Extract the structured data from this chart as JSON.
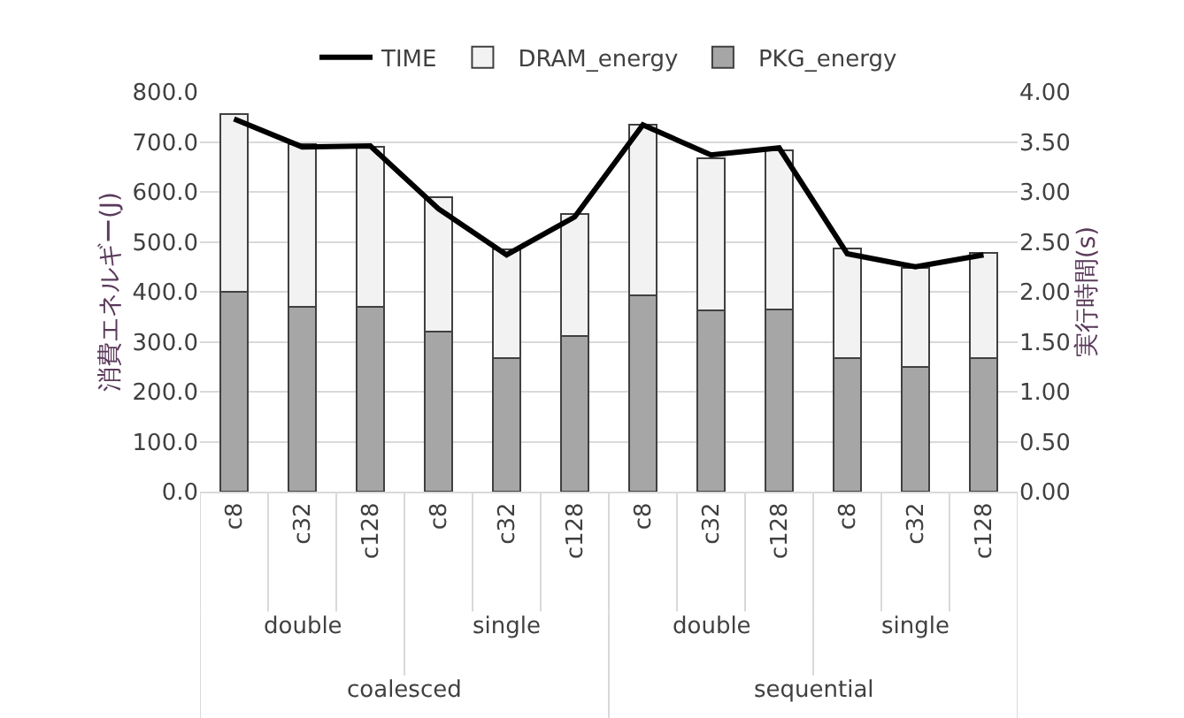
{
  "chart_data": {
    "type": "bar",
    "stacked": true,
    "categories": [
      "c8",
      "c32",
      "c128",
      "c8",
      "c32",
      "c128",
      "c8",
      "c32",
      "c128",
      "c8",
      "c32",
      "c128"
    ],
    "annotations": [
      "double",
      "single",
      "double",
      "single",
      "coalesced",
      "sequential"
    ],
    "ylabel": "消費エネルギー(J)",
    "y2label": "実行時間(s)",
    "ylim": [
      0,
      800
    ],
    "yticks": [
      {
        "value": 0,
        "label": "0.0"
      },
      {
        "value": 100,
        "label": "100.0"
      },
      {
        "value": 200,
        "label": "200.0"
      },
      {
        "value": 300,
        "label": "300.0"
      },
      {
        "value": 400,
        "label": "400.0"
      },
      {
        "value": 500,
        "label": "500.0"
      },
      {
        "value": 600,
        "label": "600.0"
      },
      {
        "value": 700,
        "label": "700.0"
      },
      {
        "value": 800,
        "label": "800.0"
      }
    ],
    "y2lim": [
      0,
      4
    ],
    "y2ticks": [
      {
        "value": 0,
        "label": "0.00"
      },
      {
        "value": 0.5,
        "label": "0.50"
      },
      {
        "value": 1,
        "label": "1.00"
      },
      {
        "value": 1.5,
        "label": "1.50"
      },
      {
        "value": 2,
        "label": "2.00"
      },
      {
        "value": 2.5,
        "label": "2.50"
      },
      {
        "value": 3,
        "label": "3.00"
      },
      {
        "value": 3.5,
        "label": "3.50"
      },
      {
        "value": 4,
        "label": "4.00"
      }
    ],
    "grid": "y",
    "legend": "top",
    "marker": "none",
    "line_style": "solid",
    "series": [
      {
        "name": "PKG_energy",
        "color": "#a6a6a6",
        "values": [
          400,
          370,
          370,
          320,
          268,
          312,
          393,
          362,
          365,
          268,
          250,
          268
        ]
      },
      {
        "name": "DRAM_energy",
        "color": "#f2f2f2",
        "values": [
          355,
          325,
          320,
          270,
          217,
          243,
          342,
          306,
          318,
          219,
          198,
          210
        ]
      },
      {
        "name": "TIME",
        "type": "line",
        "axis": "y2",
        "color": "#000000",
        "values": [
          3.73,
          3.45,
          3.46,
          2.83,
          2.37,
          2.75,
          3.67,
          3.37,
          3.44,
          2.38,
          2.25,
          2.37
        ]
      }
    ]
  }
}
